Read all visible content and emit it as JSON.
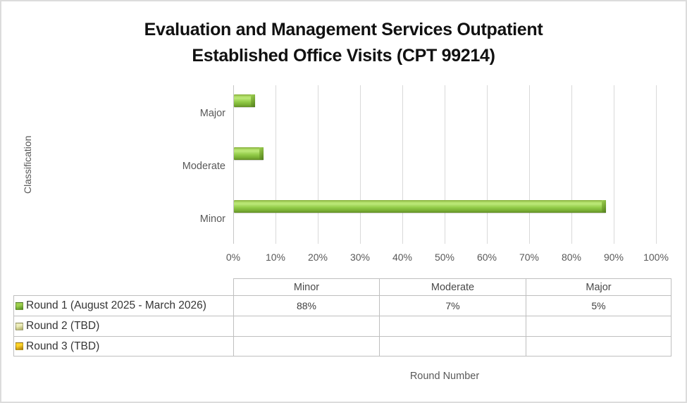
{
  "chart": {
    "title": {
      "line1": "Evaluation and Management Services Outpatient",
      "line2": "Established Office Visits (CPT 99214)"
    },
    "y_axis_label": "Classification",
    "x_axis_label": "Round Number"
  },
  "chart_data": {
    "type": "bar",
    "orientation": "horizontal",
    "title": "Evaluation and Management Services Outpatient Established Office Visits (CPT 99214)",
    "xlabel": "Round Number",
    "ylabel": "Classification",
    "categories": [
      "Minor",
      "Moderate",
      "Major"
    ],
    "series": [
      {
        "name": "Round 1 (August 2025 - March 2026)",
        "values": [
          88,
          7,
          5
        ]
      },
      {
        "name": "Round 2 (TBD)",
        "values": [
          null,
          null,
          null
        ]
      },
      {
        "name": "Round 3 (TBD)",
        "values": [
          null,
          null,
          null
        ]
      }
    ],
    "xlim": [
      0,
      100
    ],
    "x_ticks": [
      "0%",
      "10%",
      "20%",
      "30%",
      "40%",
      "50%",
      "60%",
      "70%",
      "80%",
      "90%",
      "100%"
    ],
    "grid": true,
    "bar_color": "#8CC63E",
    "legend_position": "bottom-table"
  },
  "data_table": {
    "column_headers": [
      "Minor",
      "Moderate",
      "Major"
    ],
    "rows": [
      {
        "label": "Round 1 (August 2025 - March 2026)",
        "key_color_light": "#9ed14f",
        "key_color_dark": "#4e8c1e",
        "values": [
          "88%",
          "7%",
          "5%"
        ]
      },
      {
        "label": "Round 2 (TBD)",
        "key_color_light": "#ededbb",
        "key_color_dark": "#a8a85a",
        "values": [
          "",
          "",
          ""
        ]
      },
      {
        "label": "Round 3 (TBD)",
        "key_color_light": "#ffd42a",
        "key_color_dark": "#a87808",
        "values": [
          "",
          "",
          ""
        ]
      }
    ]
  },
  "colors": {
    "grid_line": "#D9D9D9",
    "axis_text": "#595959",
    "table_border": "#BFBFBF",
    "title_text": "#111111",
    "canvas_border": "#DCDCDC"
  }
}
